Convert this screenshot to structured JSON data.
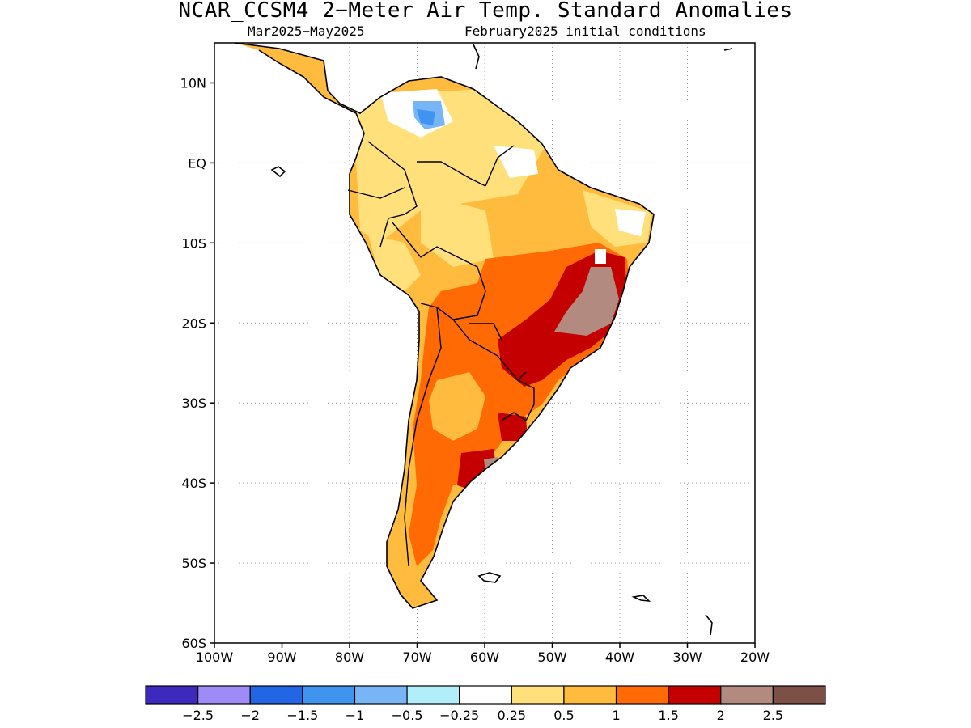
{
  "title": "NCAR_CCSM4 2−Meter Air Temp. Standard Anomalies",
  "subtitle_left": "Mar2025−May2025",
  "subtitle_right": "February2025 initial conditions",
  "map": {
    "lon_range": [
      -100,
      -20
    ],
    "lat_range": [
      -60,
      15
    ],
    "lat_ticks": [
      {
        "value": 10,
        "label": "10N"
      },
      {
        "value": 0,
        "label": "EQ"
      },
      {
        "value": -10,
        "label": "10S"
      },
      {
        "value": -20,
        "label": "20S"
      },
      {
        "value": -30,
        "label": "30S"
      },
      {
        "value": -40,
        "label": "40S"
      },
      {
        "value": -50,
        "label": "50S"
      },
      {
        "value": -60,
        "label": "60S"
      }
    ],
    "lon_ticks": [
      {
        "value": -100,
        "label": "100W"
      },
      {
        "value": -90,
        "label": "90W"
      },
      {
        "value": -80,
        "label": "80W"
      },
      {
        "value": -70,
        "label": "70W"
      },
      {
        "value": -60,
        "label": "60W"
      },
      {
        "value": -50,
        "label": "50W"
      },
      {
        "value": -40,
        "label": "40W"
      },
      {
        "value": -30,
        "label": "30W"
      },
      {
        "value": -20,
        "label": "20W"
      }
    ],
    "grid": "dotted"
  },
  "colorbar": {
    "colors": [
      "#3d29bd",
      "#9f8bf5",
      "#2266e6",
      "#3f94ef",
      "#78b5f6",
      "#b1eefa",
      "#ffffff",
      "#ffe07a",
      "#ffbb3e",
      "#ff6a05",
      "#c40000",
      "#b28a80",
      "#7d5047"
    ],
    "labels": [
      "−2.5",
      "−2",
      "−1.5",
      "−1",
      "−0.5",
      "−0.25",
      "0.25",
      "0.5",
      "1",
      "1.5",
      "2",
      "2.5"
    ]
  }
}
